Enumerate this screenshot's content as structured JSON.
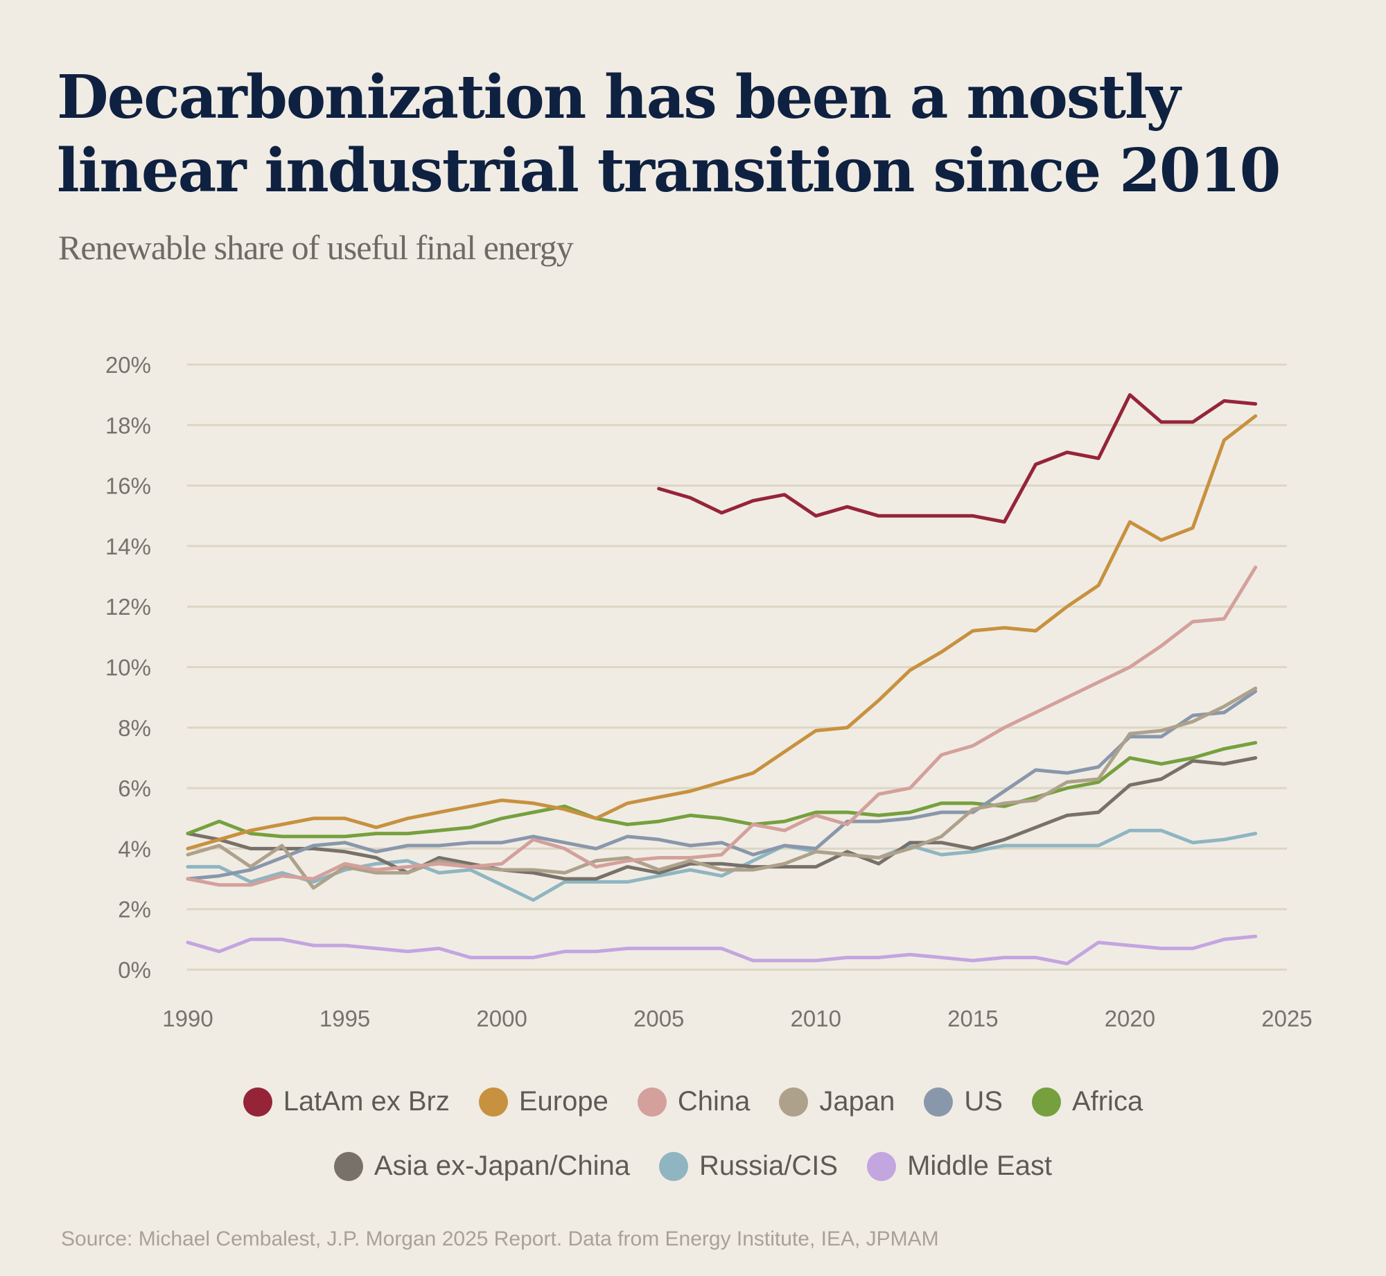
{
  "title": "Decarbonization has been a mostly linear industrial transition since 2010",
  "subtitle": "Renewable share of useful final energy",
  "source": "Source: Michael Cembalest, J.P. Morgan 2025 Report. Data from Energy Institute, IEA, JPMAM",
  "chart_data": {
    "type": "line",
    "title": "Decarbonization has been a mostly linear industrial transition since 2010",
    "subtitle": "Renewable share of useful final energy",
    "xlabel": "",
    "ylabel": "",
    "xlim": [
      1990,
      2025
    ],
    "ylim": [
      0,
      20
    ],
    "x_ticks": [
      1990,
      1995,
      2000,
      2005,
      2010,
      2015,
      2020,
      2025
    ],
    "x_tick_labels": [
      "1990",
      "1995",
      "2000",
      "2005",
      "2010",
      "2015",
      "2020",
      "2025"
    ],
    "y_ticks": [
      0,
      2,
      4,
      6,
      8,
      10,
      12,
      14,
      16,
      18,
      20
    ],
    "y_tick_labels": [
      "0%",
      "2%",
      "4%",
      "6%",
      "8%",
      "10%",
      "12%",
      "14%",
      "16%",
      "18%",
      "20%"
    ],
    "grid": "horizontal",
    "legend_position": "bottom",
    "x": [
      1990,
      1991,
      1992,
      1993,
      1994,
      1995,
      1996,
      1997,
      1998,
      1999,
      2000,
      2001,
      2002,
      2003,
      2004,
      2005,
      2006,
      2007,
      2008,
      2009,
      2010,
      2011,
      2012,
      2013,
      2014,
      2015,
      2016,
      2017,
      2018,
      2019,
      2020,
      2021,
      2022,
      2023,
      2024
    ],
    "series": [
      {
        "name": "LatAm ex Brz",
        "color": "#962439",
        "values": [
          null,
          null,
          null,
          null,
          null,
          null,
          null,
          null,
          null,
          null,
          null,
          null,
          null,
          null,
          null,
          15.9,
          15.6,
          15.1,
          15.5,
          15.7,
          15.0,
          15.3,
          15.0,
          15.0,
          15.0,
          15.0,
          14.8,
          16.7,
          17.1,
          16.9,
          19.0,
          18.1,
          18.1,
          18.8,
          18.7
        ]
      },
      {
        "name": "Europe",
        "color": "#c8913f",
        "values": [
          4.0,
          4.3,
          4.6,
          4.8,
          5.0,
          5.0,
          4.7,
          5.0,
          5.2,
          5.4,
          5.6,
          5.5,
          5.3,
          5.0,
          5.5,
          5.7,
          5.9,
          6.2,
          6.5,
          7.2,
          7.9,
          8.0,
          8.9,
          9.9,
          10.5,
          11.2,
          11.3,
          11.2,
          12.0,
          12.7,
          14.8,
          14.2,
          14.6,
          17.5,
          18.3
        ]
      },
      {
        "name": "China",
        "color": "#d4a09b",
        "values": [
          3.0,
          2.8,
          2.8,
          3.1,
          3.0,
          3.5,
          3.3,
          3.4,
          3.5,
          3.4,
          3.5,
          4.3,
          4.0,
          3.4,
          3.6,
          3.7,
          3.7,
          3.8,
          4.8,
          4.6,
          5.1,
          4.8,
          5.8,
          6.0,
          7.1,
          7.4,
          8.0,
          8.5,
          9.0,
          9.5,
          10.0,
          10.7,
          11.5,
          11.6,
          13.3
        ]
      },
      {
        "name": "Japan",
        "color": "#aea18b",
        "values": [
          3.8,
          4.1,
          3.4,
          4.1,
          2.7,
          3.4,
          3.2,
          3.2,
          3.6,
          3.4,
          3.3,
          3.3,
          3.2,
          3.6,
          3.7,
          3.3,
          3.6,
          3.3,
          3.3,
          3.5,
          3.9,
          3.8,
          3.7,
          4.0,
          4.4,
          5.3,
          5.5,
          5.6,
          6.2,
          6.3,
          7.8,
          7.9,
          8.2,
          8.7,
          9.3
        ]
      },
      {
        "name": "US",
        "color": "#8997ab",
        "values": [
          3.0,
          3.1,
          3.3,
          3.7,
          4.1,
          4.2,
          3.9,
          4.1,
          4.1,
          4.2,
          4.2,
          4.4,
          4.2,
          4.0,
          4.4,
          4.3,
          4.1,
          4.2,
          3.8,
          4.1,
          4.0,
          4.9,
          4.9,
          5.0,
          5.2,
          5.2,
          5.9,
          6.6,
          6.5,
          6.7,
          7.7,
          7.7,
          8.4,
          8.5,
          9.2
        ]
      },
      {
        "name": "Africa",
        "color": "#76a03e",
        "values": [
          4.5,
          4.9,
          4.5,
          4.4,
          4.4,
          4.4,
          4.5,
          4.5,
          4.6,
          4.7,
          5.0,
          5.2,
          5.4,
          5.0,
          4.8,
          4.9,
          5.1,
          5.0,
          4.8,
          4.9,
          5.2,
          5.2,
          5.1,
          5.2,
          5.5,
          5.5,
          5.4,
          5.7,
          6.0,
          6.2,
          7.0,
          6.8,
          7.0,
          7.3,
          7.5
        ]
      },
      {
        "name": "Asia ex-Japan/China",
        "color": "#777169",
        "values": [
          4.5,
          4.3,
          4.0,
          4.0,
          4.0,
          3.9,
          3.7,
          3.2,
          3.7,
          3.5,
          3.3,
          3.2,
          3.0,
          3.0,
          3.4,
          3.2,
          3.5,
          3.5,
          3.4,
          3.4,
          3.4,
          3.9,
          3.5,
          4.2,
          4.2,
          4.0,
          4.3,
          4.7,
          5.1,
          5.2,
          6.1,
          6.3,
          6.9,
          6.8,
          7.0
        ]
      },
      {
        "name": "Russia/CIS",
        "color": "#8fb5c1",
        "values": [
          3.4,
          3.4,
          2.9,
          3.2,
          2.9,
          3.3,
          3.5,
          3.6,
          3.2,
          3.3,
          2.8,
          2.3,
          2.9,
          2.9,
          2.9,
          3.1,
          3.3,
          3.1,
          3.6,
          4.1,
          3.9,
          3.8,
          3.7,
          4.1,
          3.8,
          3.9,
          4.1,
          4.1,
          4.1,
          4.1,
          4.6,
          4.6,
          4.2,
          4.3,
          4.5
        ]
      },
      {
        "name": "Middle East",
        "color": "#c3a5e0",
        "values": [
          0.9,
          0.6,
          1.0,
          1.0,
          0.8,
          0.8,
          0.7,
          0.6,
          0.7,
          0.4,
          0.4,
          0.4,
          0.6,
          0.6,
          0.7,
          0.7,
          0.7,
          0.7,
          0.3,
          0.3,
          0.3,
          0.4,
          0.4,
          0.5,
          0.4,
          0.3,
          0.4,
          0.4,
          0.2,
          0.9,
          0.8,
          0.7,
          0.7,
          1.0,
          1.1
        ]
      }
    ]
  }
}
